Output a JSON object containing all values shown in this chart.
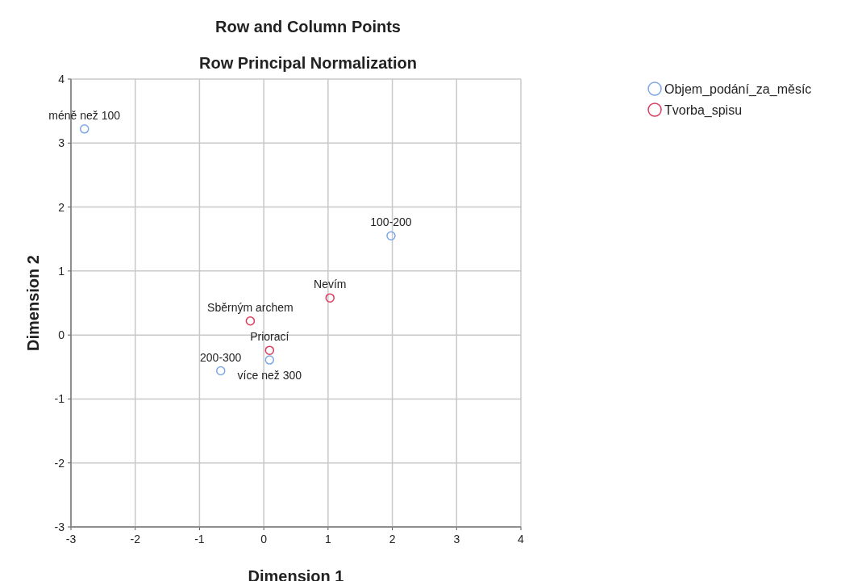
{
  "chart_data": {
    "type": "scatter",
    "title": "Row and Column Points",
    "subtitle": "Row Principal Normalization",
    "xlabel": "Dimension 1",
    "ylabel": "Dimension 2",
    "series": [
      {
        "name": "Objem_podání_za_měsíc",
        "color": "#7ba7e6",
        "x": [
          -2.79,
          1.98,
          -0.67,
          0.09
        ],
        "values": [
          3.22,
          1.55,
          -0.56,
          -0.39
        ]
      },
      {
        "name": "Tvorba_spisu",
        "color": "#dd3a5b",
        "x": [
          1.03,
          -0.21,
          0.09
        ],
        "values": [
          0.58,
          0.22,
          -0.24
        ]
      }
    ],
    "annotations": [
      {
        "text": "méně než 100",
        "x": -2.79,
        "y": 3.22
      },
      {
        "text": "100-200",
        "x": 1.98,
        "y": 1.55
      },
      {
        "text": "200-300",
        "x": -0.67,
        "y": -0.56
      },
      {
        "text": "více než 300",
        "x": 0.09,
        "y": -0.39
      },
      {
        "text": "Nevím",
        "x": 1.03,
        "y": 0.58
      },
      {
        "text": "Sběrným archem",
        "x": -0.21,
        "y": 0.22
      },
      {
        "text": "Priorací",
        "x": 0.09,
        "y": -0.24
      }
    ],
    "xlim": [
      -3,
      4
    ],
    "xticks": [
      -3,
      -2,
      -1,
      0,
      1,
      2,
      3,
      4
    ],
    "ylim": [
      -3,
      4
    ],
    "yticks": [
      -3,
      -2,
      -1,
      0,
      1,
      2,
      3,
      4
    ],
    "grid": true,
    "legend": "top right",
    "marker": "circle"
  }
}
